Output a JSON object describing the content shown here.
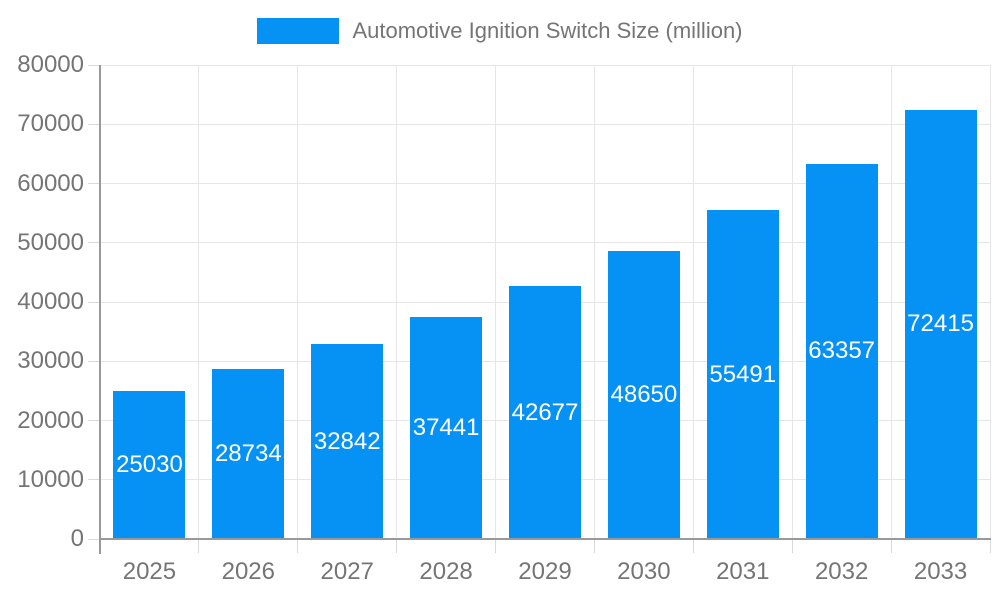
{
  "legend": {
    "label": "Automotive Ignition Switch Size (million)"
  },
  "colors": {
    "bar": "#0691f5",
    "text": "#757575",
    "bar_label": "#ffffff",
    "gridline": "#e6e6e6",
    "tick": "#d9d9d9",
    "axis": "#999999",
    "background": "#ffffff"
  },
  "chart_data": {
    "type": "bar",
    "title": "Automotive Ignition Switch Size (million)",
    "categories": [
      "2025",
      "2026",
      "2027",
      "2028",
      "2029",
      "2030",
      "2031",
      "2032",
      "2033"
    ],
    "values": [
      25030,
      28734,
      32842,
      37441,
      42677,
      48650,
      55491,
      63357,
      72415
    ],
    "xlabel": "",
    "ylabel": "",
    "ylim": [
      0,
      80000
    ],
    "ytick_step": 10000,
    "ytick_labels": [
      "0",
      "10000",
      "20000",
      "30000",
      "40000",
      "50000",
      "60000",
      "70000",
      "80000"
    ],
    "grid": true,
    "legend_position": "top",
    "value_labels": "inside-center-white"
  }
}
